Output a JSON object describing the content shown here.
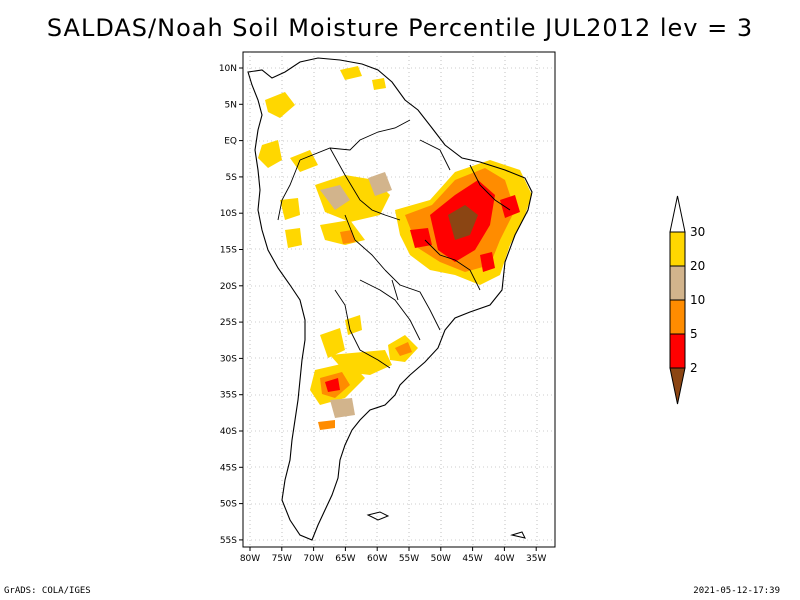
{
  "title": "SALDAS/Noah Soil Moisture Percentile JUL2012 lev = 3",
  "footer_left": "GrADS: COLA/IGES",
  "footer_right": "2021-05-12-17:39",
  "lat_labels": [
    "10N",
    "5N",
    "EQ",
    "5S",
    "10S",
    "15S",
    "20S",
    "25S",
    "30S",
    "35S",
    "40S",
    "45S",
    "50S",
    "55S"
  ],
  "lon_labels": [
    "80W",
    "75W",
    "70W",
    "65W",
    "60W",
    "55W",
    "50W",
    "45W",
    "40W",
    "35W"
  ],
  "legend": {
    "labels": [
      "2",
      "5",
      "10",
      "20",
      "30"
    ],
    "colors": [
      "#8b4513",
      "#ff0000",
      "#ff8c00",
      "#d2b48c",
      "#ffd700"
    ],
    "top_color": "#ffffff"
  }
}
